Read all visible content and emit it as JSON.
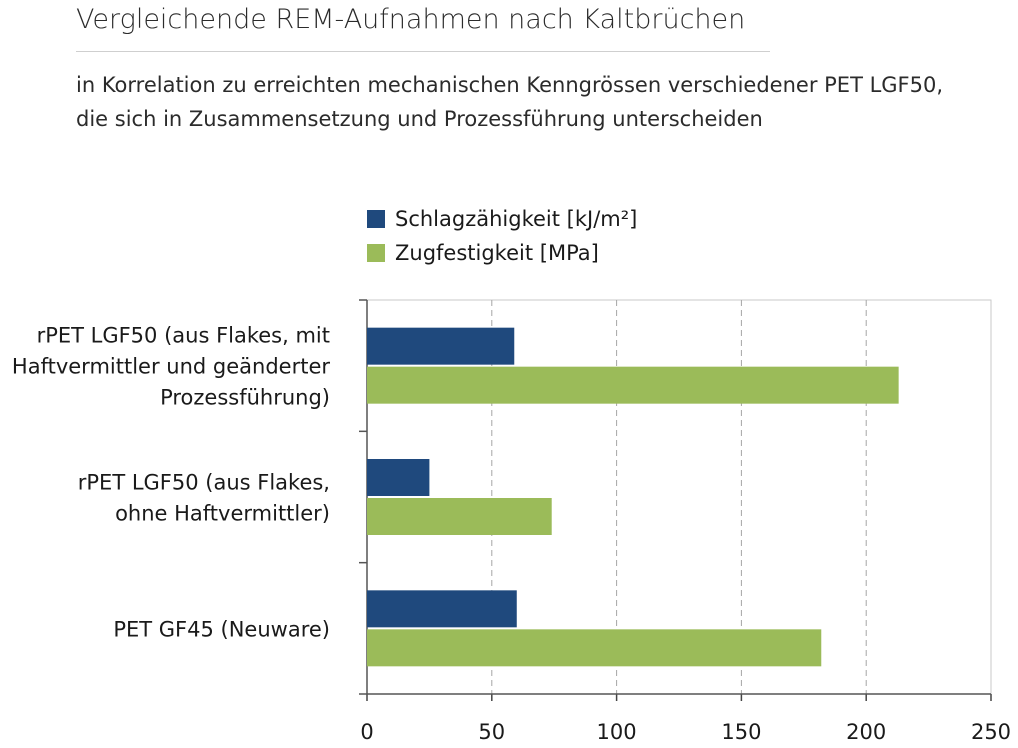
{
  "header": {
    "title": "Vergleichende REM-Aufnahmen nach Kaltbrüchen",
    "subtitle": "in Korrelation zu erreichten mechanischen Kenngrössen verschiedener PET LGF50, die sich in Zusammensetzung und Prozessführung unterscheiden"
  },
  "chart_data": {
    "type": "bar",
    "orientation": "horizontal",
    "categories": [
      [
        "rPET LGF50 (aus Flakes, mit",
        "Haftvermittler und geänderter",
        "Prozessführung)"
      ],
      [
        "rPET LGF50 (aus Flakes,",
        "ohne Haftvermittler)"
      ],
      [
        "PET GF45 (Neuware)"
      ]
    ],
    "series": [
      {
        "name": "Schlagzähigkeit [kJ/m²]",
        "color": "#1f497d",
        "values": [
          59,
          25,
          60
        ]
      },
      {
        "name": "Zugfestigkeit [MPa]",
        "color": "#9bbb59",
        "values": [
          213,
          74,
          182
        ]
      }
    ],
    "xlim": [
      0,
      250
    ],
    "xticks": [
      "0",
      "50",
      "100",
      "150",
      "200",
      "250"
    ],
    "grid": "vertical dashed",
    "legend_position": "top"
  }
}
